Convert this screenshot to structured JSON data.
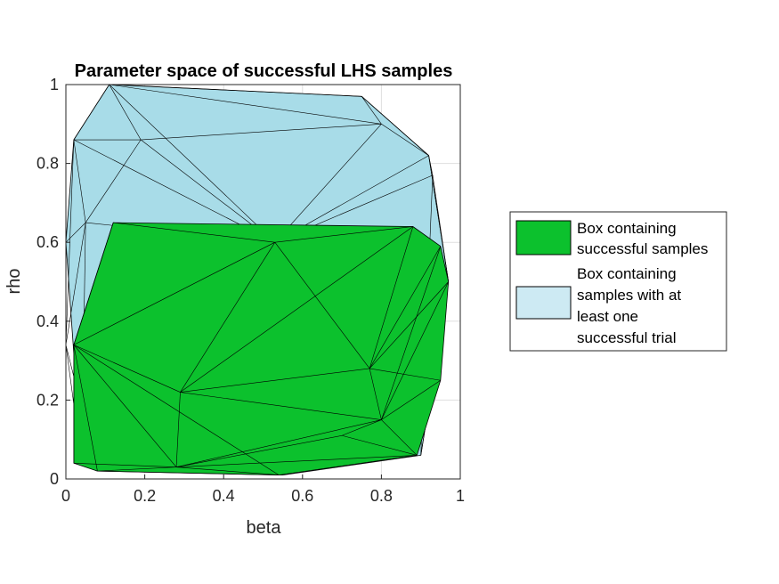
{
  "chart_data": {
    "type": "area",
    "title": "Parameter space of successful LHS samples",
    "xlabel": "beta",
    "ylabel": "rho",
    "xlim": [
      0,
      1
    ],
    "ylim": [
      0,
      1
    ],
    "xticks": [
      "0",
      "0.2",
      "0.4",
      "0.6",
      "0.8",
      "1"
    ],
    "yticks": [
      "0",
      "0.2",
      "0.4",
      "0.6",
      "0.8",
      "1"
    ],
    "grid": true,
    "legend_position": "right",
    "colors": {
      "green": "#0cc12d",
      "blue": "#a8dce8",
      "edge": "#000000"
    },
    "series": [
      {
        "name": "Box containing successful samples",
        "color": "#0cc12d",
        "hull": [
          [
            0.12,
            0.65
          ],
          [
            0.88,
            0.64
          ],
          [
            0.95,
            0.59
          ],
          [
            0.97,
            0.5
          ],
          [
            0.95,
            0.25
          ],
          [
            0.89,
            0.06
          ],
          [
            0.54,
            0.01
          ],
          [
            0.08,
            0.02
          ],
          [
            0.02,
            0.04
          ],
          [
            0.02,
            0.34
          ],
          [
            0.12,
            0.65
          ]
        ],
        "vertices": [
          [
            0.12,
            0.65
          ],
          [
            0.88,
            0.64
          ],
          [
            0.95,
            0.59
          ],
          [
            0.97,
            0.5
          ],
          [
            0.95,
            0.25
          ],
          [
            0.89,
            0.06
          ],
          [
            0.54,
            0.01
          ],
          [
            0.08,
            0.02
          ],
          [
            0.02,
            0.04
          ],
          [
            0.02,
            0.34
          ],
          [
            0.53,
            0.6
          ],
          [
            0.77,
            0.28
          ],
          [
            0.29,
            0.22
          ],
          [
            0.28,
            0.03
          ],
          [
            0.8,
            0.15
          ],
          [
            0.7,
            0.11
          ]
        ],
        "edges": [
          [
            0,
            10
          ],
          [
            1,
            10
          ],
          [
            9,
            10
          ],
          [
            10,
            11
          ],
          [
            10,
            12
          ],
          [
            9,
            12
          ],
          [
            12,
            11
          ],
          [
            11,
            1
          ],
          [
            11,
            2
          ],
          [
            11,
            3
          ],
          [
            11,
            4
          ],
          [
            11,
            14
          ],
          [
            14,
            3
          ],
          [
            14,
            2
          ],
          [
            14,
            4
          ],
          [
            14,
            5
          ],
          [
            14,
            13
          ],
          [
            12,
            13
          ],
          [
            12,
            14
          ],
          [
            9,
            13
          ],
          [
            9,
            6
          ],
          [
            13,
            6
          ],
          [
            13,
            5
          ],
          [
            13,
            15
          ],
          [
            15,
            5
          ],
          [
            15,
            14
          ],
          [
            7,
            13
          ],
          [
            7,
            9
          ],
          [
            8,
            9
          ],
          [
            8,
            13
          ],
          [
            9,
            0
          ],
          [
            12,
            1
          ]
        ]
      },
      {
        "name": "Box containing samples with at least one successful trial",
        "color": "#a8dce8",
        "hull": [
          [
            0.11,
            1.0
          ],
          [
            0.75,
            0.97
          ],
          [
            0.92,
            0.82
          ],
          [
            0.97,
            0.5
          ],
          [
            0.9,
            0.06
          ],
          [
            0.55,
            0.01
          ],
          [
            0.08,
            0.02
          ],
          [
            0.04,
            0.04
          ],
          [
            0.0,
            0.6
          ],
          [
            0.02,
            0.86
          ],
          [
            0.11,
            1.0
          ]
        ],
        "vertices": [
          [
            0.11,
            1.0
          ],
          [
            0.75,
            0.97
          ],
          [
            0.92,
            0.82
          ],
          [
            0.97,
            0.5
          ],
          [
            0.9,
            0.06
          ],
          [
            0.55,
            0.01
          ],
          [
            0.08,
            0.02
          ],
          [
            0.04,
            0.04
          ],
          [
            0.0,
            0.6
          ],
          [
            0.02,
            0.86
          ],
          [
            0.53,
            0.6
          ],
          [
            0.19,
            0.86
          ],
          [
            0.8,
            0.9
          ],
          [
            0.93,
            0.77
          ],
          [
            0.05,
            0.65
          ],
          [
            0.0,
            0.34
          ]
        ],
        "edges": [
          [
            0,
            10
          ],
          [
            0,
            11
          ],
          [
            0,
            12
          ],
          [
            0,
            1
          ],
          [
            9,
            11
          ],
          [
            9,
            14
          ],
          [
            9,
            0
          ],
          [
            9,
            15
          ],
          [
            9,
            10
          ],
          [
            11,
            10
          ],
          [
            11,
            12
          ],
          [
            11,
            14
          ],
          [
            12,
            10
          ],
          [
            12,
            2
          ],
          [
            12,
            1
          ],
          [
            1,
            2
          ],
          [
            2,
            10
          ],
          [
            2,
            13
          ],
          [
            13,
            10
          ],
          [
            13,
            3
          ],
          [
            13,
            4
          ],
          [
            14,
            10
          ],
          [
            14,
            8
          ],
          [
            8,
            15
          ],
          [
            15,
            14
          ],
          [
            2,
            3
          ],
          [
            3,
            4
          ],
          [
            15,
            6
          ],
          [
            15,
            7
          ],
          [
            14,
            7
          ]
        ]
      }
    ]
  },
  "legend": {
    "items": [
      {
        "lines": [
          "Box containing",
          "successful samples"
        ],
        "color": "#0cc12d"
      },
      {
        "lines": [
          "Box containing",
          "samples with at",
          "least one",
          "successful trial"
        ],
        "color": "#cdeaf3"
      }
    ]
  }
}
